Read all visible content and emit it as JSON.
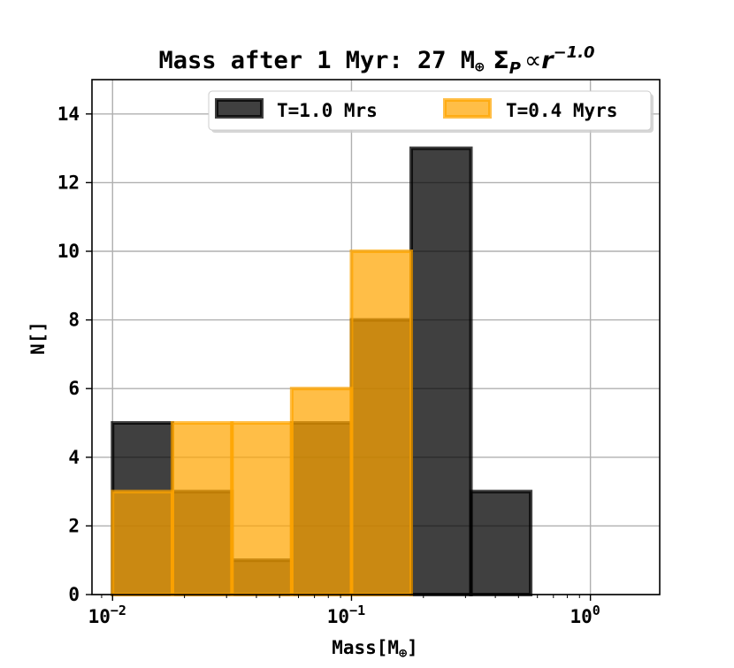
{
  "chart_data": {
    "type": "histogram",
    "title": {
      "prefix": "Mass after 1 Myr: 27 M",
      "unit_symbol": "⊕",
      "sigma": "Σ",
      "sigma_sub": "P",
      "prop": "∝",
      "r": "r",
      "exponent": "−1.0"
    },
    "xlabel": {
      "prefix": "Mass[M",
      "unit_symbol": "⊕",
      "suffix": "]"
    },
    "ylabel": "N[]",
    "xscale": "log",
    "xlim": [
      0.0082,
      1.95
    ],
    "ylim": [
      0,
      15
    ],
    "yticks": [
      0,
      2,
      4,
      6,
      8,
      10,
      12,
      14
    ],
    "xticks": [
      {
        "value": 0.01,
        "base": "10",
        "exp": "−2"
      },
      {
        "value": 0.1,
        "base": "10",
        "exp": "−1"
      },
      {
        "value": 1,
        "base": "10",
        "exp": "0"
      }
    ],
    "grid": true,
    "legend_position": "top-right",
    "series": [
      {
        "name": "T=1.0 Mrs",
        "fill": "#000000",
        "fill_opacity": 0.75,
        "edge": "#000000",
        "bin_edges": [
          0.01,
          0.0178,
          0.0316,
          0.0562,
          0.1,
          0.1778,
          0.3162,
          0.5623,
          1.0,
          1.7783
        ],
        "counts": [
          5,
          3,
          1,
          5,
          8,
          13,
          3,
          0,
          0
        ]
      },
      {
        "name": "T=0.4 Myrs",
        "fill": "#FFA500",
        "fill_opacity": 0.72,
        "edge": "#FFA500",
        "bin_edges": [
          0.01,
          0.0178,
          0.0316,
          0.0562,
          0.1,
          0.1778,
          0.3162,
          0.5623,
          1.0,
          1.7783
        ],
        "counts": [
          3,
          5,
          5,
          6,
          10,
          0,
          0,
          0,
          0
        ]
      }
    ]
  }
}
